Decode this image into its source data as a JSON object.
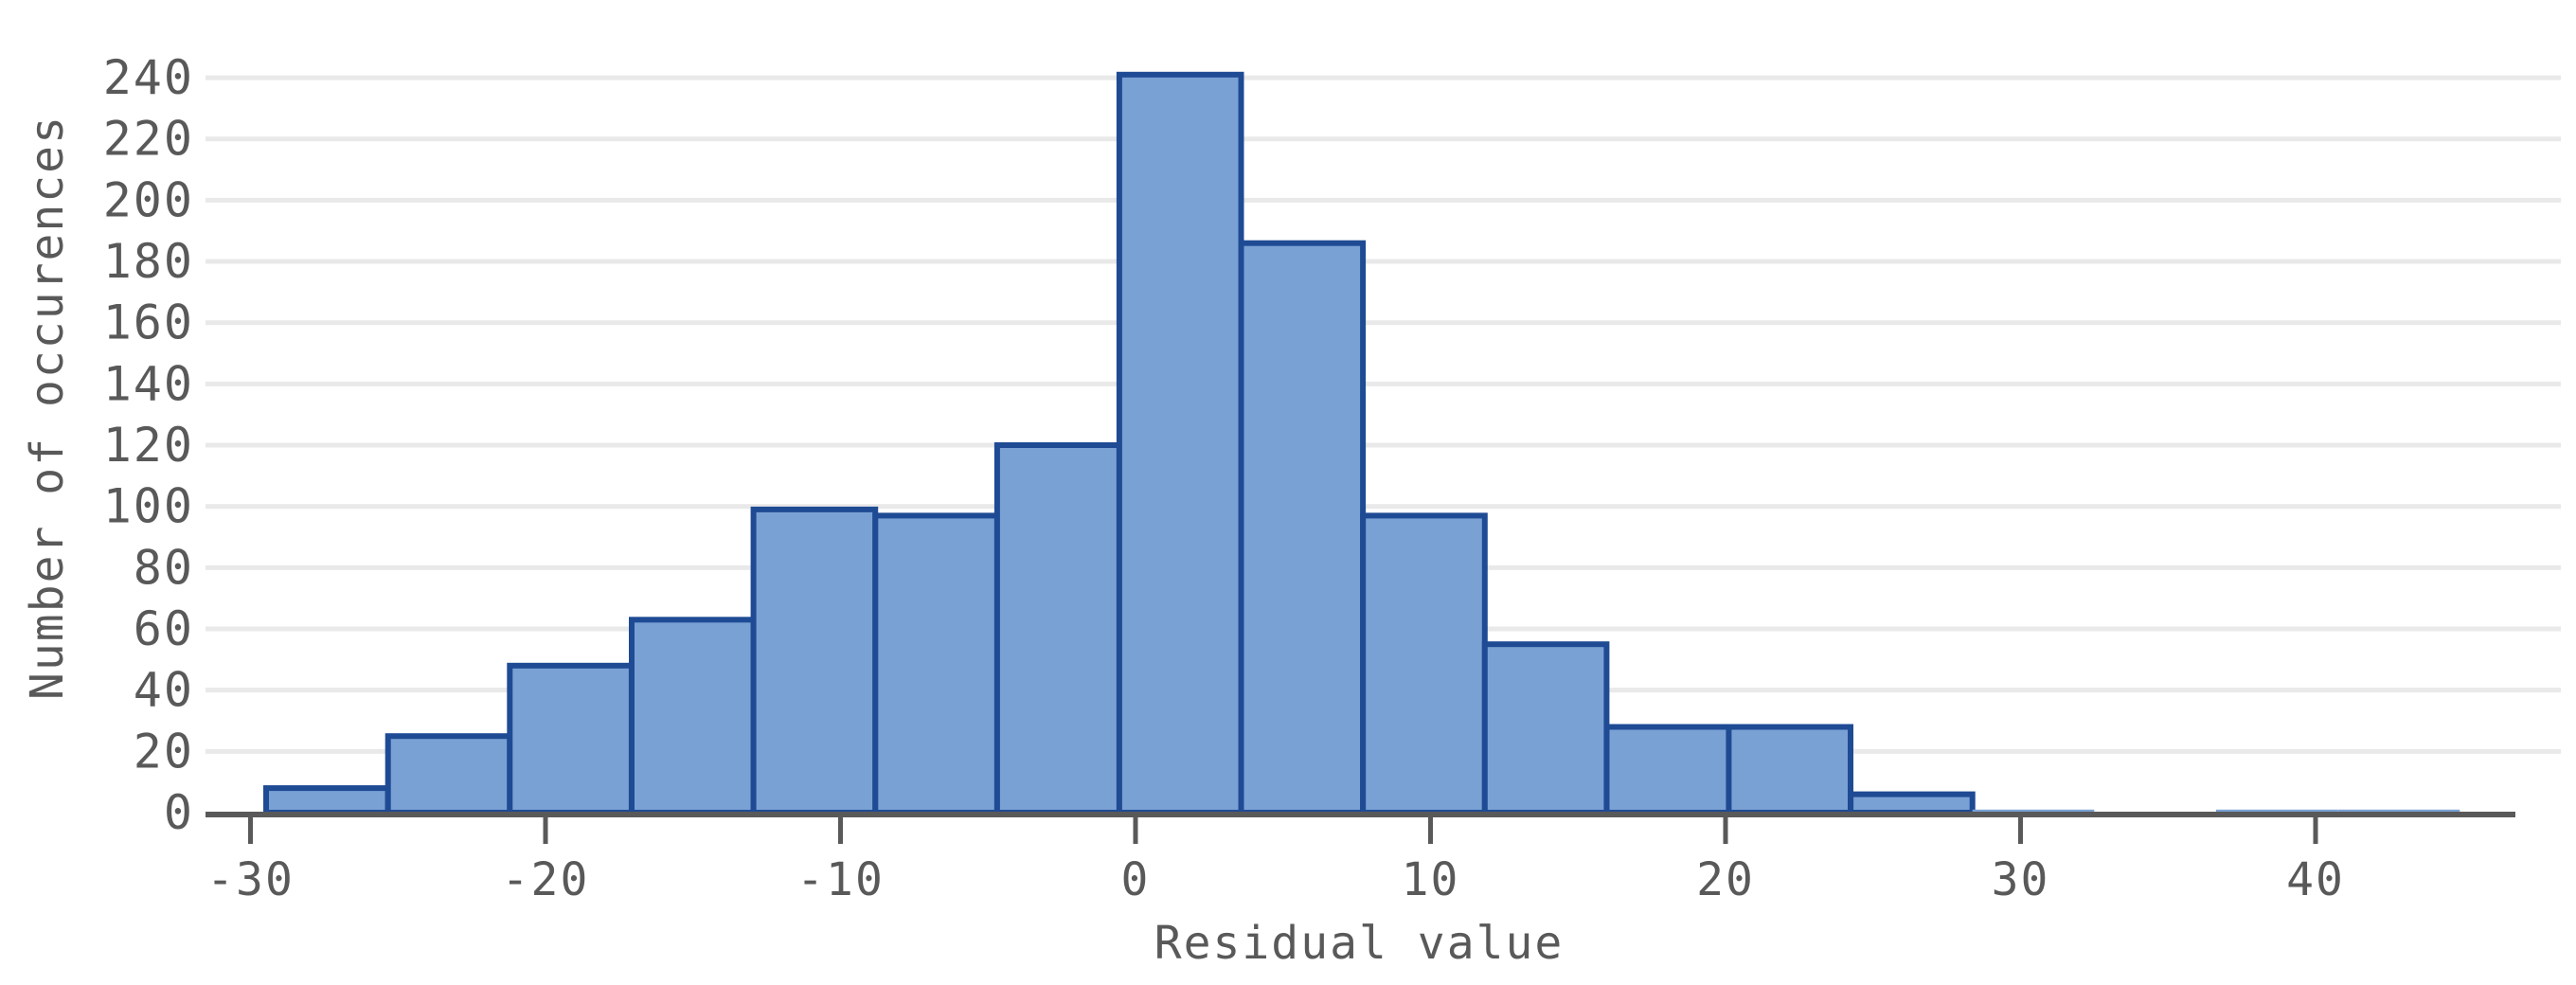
{
  "figure": {
    "background_color": "#ffffff",
    "text_color": "#595959"
  },
  "chart_data": {
    "type": "bar",
    "subtype": "histogram",
    "title": "",
    "xlabel": "Residual value",
    "ylabel": "Number of occurences",
    "x_ticks": [
      -30,
      -20,
      -10,
      0,
      10,
      20,
      30,
      40
    ],
    "y_ticks": [
      0,
      20,
      40,
      60,
      80,
      100,
      120,
      140,
      160,
      180,
      200,
      220,
      240
    ],
    "xlim": [
      -31.5,
      48.3
    ],
    "ylim": [
      0,
      252
    ],
    "bin_edges": [
      -29.47,
      -25.34,
      -21.21,
      -17.08,
      -12.95,
      -8.82,
      -4.69,
      -0.55,
      3.58,
      7.71,
      11.84,
      15.97,
      20.11,
      24.24,
      28.37,
      32.5,
      36.63,
      40.76,
      44.89
    ],
    "counts": [
      8,
      25,
      48,
      63,
      99,
      97,
      120,
      241,
      186,
      97,
      55,
      28,
      28,
      6,
      1,
      0,
      1,
      1
    ],
    "grid": "horizontal",
    "legend": "none",
    "colors": {
      "bar_fill": "#7AA1D4",
      "bar_stroke": "#1F4B94",
      "grid_line": "#E9E9E9",
      "axis_line": "#595959",
      "tick_text": "#595959"
    }
  }
}
